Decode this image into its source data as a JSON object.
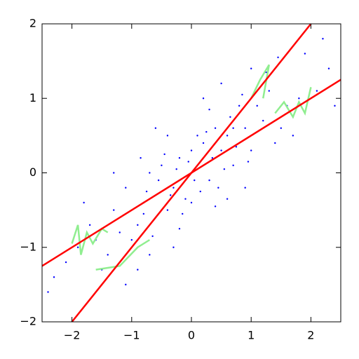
{
  "chart_data": {
    "type": "scatter",
    "xlim": [
      -2.5,
      2.5
    ],
    "ylim": [
      -2,
      2
    ],
    "xticks": [
      {
        "value": -2,
        "label": "−2"
      },
      {
        "value": -1,
        "label": "−1"
      },
      0,
      1,
      2
    ],
    "yticks": [
      {
        "value": -2,
        "label": "−2"
      },
      {
        "value": -1,
        "label": "−1"
      },
      0,
      1,
      2
    ],
    "series": [
      {
        "type": "scatter",
        "color": "#0000ff",
        "x": [
          0.1,
          -0.3,
          0.5,
          -0.8,
          1.2,
          -1.3,
          0.2,
          -0.1,
          0.7,
          -0.5,
          0.9,
          -0.9,
          1.5,
          -1.6,
          0.3,
          -0.2,
          0.0,
          0.4,
          -0.6,
          1.0,
          -1.1,
          0.6,
          -0.4,
          1.8,
          -1.9,
          0.8,
          -0.7,
          0.15,
          -0.25,
          1.3,
          -1.4,
          2.1,
          -2.1,
          0.55,
          -0.55,
          0.35,
          -0.35,
          1.1,
          -1.0,
          0.05,
          -0.05,
          0.75,
          -0.75,
          1.6,
          -1.7,
          0.45,
          -0.45,
          0.25,
          -0.15,
          2.3,
          -2.3,
          1.4,
          -1.2,
          0.65,
          -0.65,
          0.95,
          -0.85,
          0.0,
          0.1,
          1.9,
          -1.5,
          0.2,
          -0.3,
          1.0,
          -0.9,
          2.2,
          1.25,
          -1.1,
          0.5,
          -0.6,
          0.9,
          0.3,
          -0.2,
          1.7,
          -1.8,
          0.6,
          -0.7,
          0.85,
          -0.4,
          0.4,
          2.4,
          -2.4,
          1.45,
          -1.3,
          0.15,
          -0.1,
          0.7,
          -0.8
        ],
        "values": [
          0.05,
          -0.2,
          0.3,
          -0.4,
          0.7,
          -0.5,
          0.4,
          -0.35,
          0.1,
          0.1,
          0.6,
          -0.7,
          0.6,
          -0.9,
          -0.1,
          0.2,
          0.3,
          0.6,
          -0.6,
          0.3,
          -0.2,
          0.5,
          -0.5,
          1.0,
          -1.0,
          0.9,
          0.0,
          -0.25,
          0.05,
          1.1,
          -1.1,
          1.1,
          -1.2,
          0.05,
          -0.1,
          0.2,
          -0.3,
          0.9,
          -0.9,
          -0.1,
          0.15,
          0.35,
          -0.25,
          0.9,
          -0.7,
          -0.2,
          0.25,
          0.55,
          -0.55,
          1.4,
          -1.4,
          0.4,
          -0.8,
          0.75,
          -0.85,
          0.15,
          0.2,
          -0.4,
          0.5,
          1.6,
          -1.3,
          1.0,
          -1.0,
          1.4,
          -1.3,
          1.8,
          1.35,
          -1.5,
          1.2,
          0.6,
          -0.2,
          0.85,
          -0.75,
          0.5,
          -0.4,
          -0.35,
          -1.1,
          1.05,
          0.5,
          -0.45,
          0.9,
          -1.6,
          1.55,
          0.0,
          0.15,
          -0.05,
          0.6,
          -0.55
        ]
      },
      {
        "type": "line",
        "color": "#90ee90",
        "x": [
          -2.0,
          -1.9,
          -1.85,
          -1.75,
          -1.65,
          -1.5,
          -1.4,
          null,
          1.4,
          1.55,
          1.7,
          1.8,
          1.9,
          2.0
        ],
        "values": [
          -0.95,
          -0.7,
          -1.1,
          -0.8,
          -0.95,
          -0.75,
          -0.8,
          null,
          0.8,
          0.95,
          0.75,
          0.95,
          0.8,
          1.15
        ]
      },
      {
        "type": "line",
        "color": "#90ee90",
        "x": [
          -1.6,
          -1.2,
          -0.9,
          -0.7,
          null,
          1.0,
          1.15,
          1.3,
          1.2
        ],
        "values": [
          -1.3,
          -1.25,
          -1.0,
          -0.9,
          null,
          1.0,
          1.25,
          1.45,
          1.0
        ]
      },
      {
        "type": "line",
        "color": "#ff0000",
        "x": [
          -2.5,
          2.5
        ],
        "values": [
          -1.25,
          1.25
        ]
      },
      {
        "type": "line",
        "color": "#ff0000",
        "x": [
          -2.0,
          2.0
        ],
        "values": [
          -2.0,
          2.0
        ]
      }
    ]
  }
}
